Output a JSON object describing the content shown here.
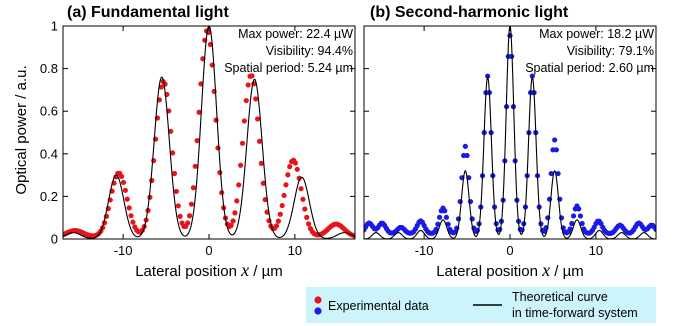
{
  "chart_data": [
    {
      "type": "scatter",
      "title": "(a) Fundamental light",
      "xlabel_prefix": "Lateral position",
      "xlabel_var": "x",
      "xlabel_unit": "/ µm",
      "ylabel": "Optical power / a.u.",
      "xlim": [
        -17,
        17
      ],
      "ylim": [
        0,
        1
      ],
      "x_ticks": [
        -10,
        0,
        10
      ],
      "y_ticks": [
        0,
        0.2,
        0.4,
        0.6,
        0.8,
        1
      ],
      "y_tick_labels": [
        "0",
        "0.2",
        "0.4",
        "0.6",
        "0.8",
        "1"
      ],
      "x_tick_labels": [
        "-10",
        "0",
        "10"
      ],
      "annotations": [
        "Max power: 22.4 µW",
        "Visibility: 94.4%",
        "Spatial period: 5.24 µm"
      ],
      "grid": false,
      "series": [
        {
          "role": "experimental",
          "color": "#e8141b",
          "peaks": [
            [
              -15.6,
              0.03
            ],
            [
              -10.5,
              0.3
            ],
            [
              -5.3,
              0.73
            ],
            [
              -0.2,
              0.97
            ],
            [
              4.9,
              0.76
            ],
            [
              9.8,
              0.36
            ],
            [
              14.8,
              0.06
            ]
          ],
          "width": 1.35,
          "floor": 0.01,
          "x_step": 0.22
        },
        {
          "role": "theory",
          "color": "#000000",
          "peaks": [
            [
              -15.8,
              0.03
            ],
            [
              -10.8,
              0.3
            ],
            [
              -5.5,
              0.76
            ],
            [
              0.0,
              1.0
            ],
            [
              5.3,
              0.75
            ],
            [
              10.8,
              0.29
            ],
            [
              15.8,
              0.03
            ]
          ],
          "width": 1.25,
          "floor": 0.0
        }
      ]
    },
    {
      "type": "scatter",
      "title": "(b) Second-harmonic light",
      "xlabel_prefix": "Lateral position",
      "xlabel_var": "x",
      "xlabel_unit": "/ µm",
      "ylabel": "",
      "xlim": [
        -17,
        17
      ],
      "ylim": [
        0,
        1
      ],
      "x_ticks": [
        -10,
        0,
        10
      ],
      "y_ticks": [
        0,
        0.2,
        0.4,
        0.6,
        0.8,
        1
      ],
      "x_tick_labels": [
        "-10",
        "0",
        "10"
      ],
      "annotations": [
        "Max power: 18.2 µW",
        "Visibility: 79.1%",
        "Spatial period: 2.60 µm"
      ],
      "grid": false,
      "series": [
        {
          "role": "experimental",
          "color": "#1a1ae6",
          "peaks": [
            [
              -16.4,
              0.05
            ],
            [
              -14.9,
              0.05
            ],
            [
              -12.7,
              0.03
            ],
            [
              -10.4,
              0.06
            ],
            [
              -7.8,
              0.12
            ],
            [
              -5.2,
              0.41
            ],
            [
              -2.6,
              0.74
            ],
            [
              0.0,
              0.93
            ],
            [
              2.6,
              0.74
            ],
            [
              5.2,
              0.44
            ],
            [
              7.8,
              0.13
            ],
            [
              10.3,
              0.06
            ],
            [
              12.8,
              0.04
            ],
            [
              15.0,
              0.05
            ],
            [
              16.5,
              0.04
            ]
          ],
          "width": 0.6,
          "floor": 0.025,
          "x_step": 0.2
        },
        {
          "role": "theory",
          "color": "#000000",
          "peaks": [
            [
              -15.6,
              0.03
            ],
            [
              -13.0,
              0.03
            ],
            [
              -10.4,
              0.04
            ],
            [
              -7.8,
              0.09
            ],
            [
              -5.2,
              0.32
            ],
            [
              -2.6,
              0.76
            ],
            [
              0.0,
              1.0
            ],
            [
              2.6,
              0.76
            ],
            [
              5.2,
              0.32
            ],
            [
              7.8,
              0.09
            ],
            [
              10.4,
              0.04
            ],
            [
              13.0,
              0.03
            ],
            [
              15.6,
              0.03
            ]
          ],
          "width": 0.62,
          "floor": 0.0
        }
      ]
    }
  ],
  "legend": {
    "experimental_label": "Experimental data",
    "theory_label_line1": "Theoretical curve",
    "theory_label_line2": "in time-forward system",
    "background": "#ccf4fb",
    "red_color": "#e8141b",
    "blue_color": "#1a1ae6"
  }
}
